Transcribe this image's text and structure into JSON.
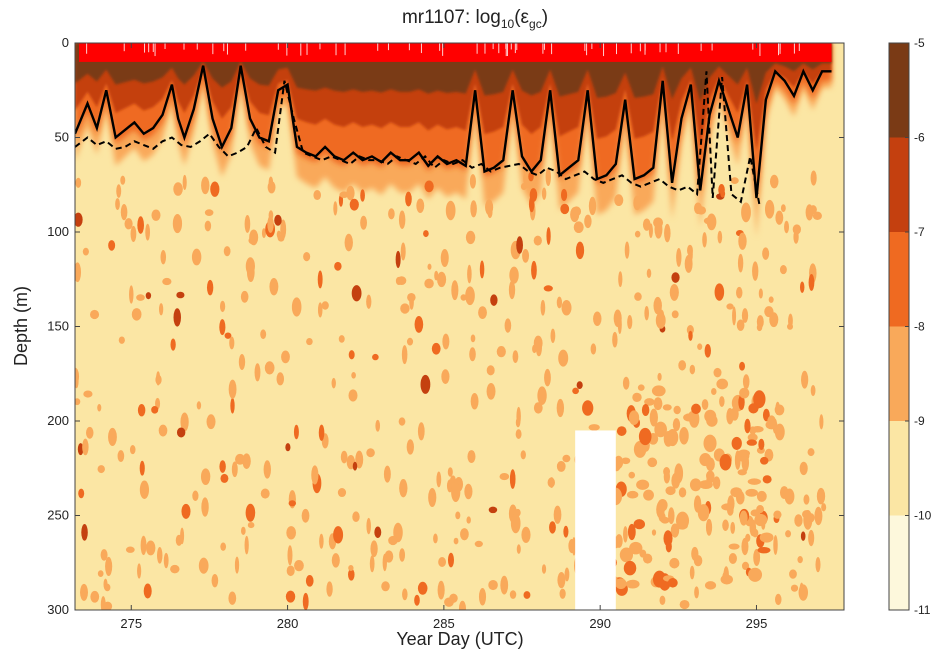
{
  "chart_data": {
    "type": "heatmap",
    "title": "mr1107: log",
    "title_sub": "10",
    "title_paren_open": "(ε",
    "title_sub2": "gc",
    "title_paren_close": ")",
    "xlabel": "Year Day (UTC)",
    "ylabel": "Depth (m)",
    "xlim": [
      273.2,
      297.8
    ],
    "ylim": [
      0,
      300
    ],
    "y_inverted": true,
    "xticks": [
      275,
      280,
      285,
      290,
      295
    ],
    "yticks": [
      0,
      50,
      100,
      150,
      200,
      250,
      300
    ],
    "colorbar": {
      "ticks": [
        -5,
        -6,
        -7,
        -8,
        -9,
        -10,
        -11
      ],
      "levels": [
        {
          "from": -11,
          "to": -10,
          "color": "#fdf8dc"
        },
        {
          "from": -10,
          "to": -9,
          "color": "#fbe6a4"
        },
        {
          "from": -9,
          "to": -8,
          "color": "#f9a95a"
        },
        {
          "from": -8,
          "to": -7,
          "color": "#ef6a21"
        },
        {
          "from": -7,
          "to": -6,
          "color": "#c4400f"
        },
        {
          "from": -6,
          "to": -5,
          "color": "#7a3a15"
        }
      ]
    },
    "background_level_color": "#fbe6a4",
    "mixed_layer_solid": {
      "name": "",
      "x": [
        273.2,
        273.6,
        273.9,
        274.2,
        274.5,
        274.8,
        275.1,
        275.4,
        275.7,
        276.0,
        276.3,
        276.5,
        276.7,
        277.0,
        277.3,
        277.6,
        277.9,
        278.2,
        278.5,
        278.8,
        279.1,
        279.4,
        279.7,
        280.0,
        280.3,
        280.6,
        280.9,
        281.2,
        281.5,
        281.8,
        282.1,
        282.4,
        282.7,
        283.0,
        283.3,
        283.6,
        283.9,
        284.2,
        284.5,
        284.8,
        285.1,
        285.4,
        285.7,
        286.0,
        286.3,
        286.6,
        286.9,
        287.2,
        287.5,
        287.8,
        288.1,
        288.4,
        288.7,
        289.0,
        289.3,
        289.6,
        289.9,
        290.2,
        290.5,
        290.8,
        291.1,
        291.4,
        291.7,
        292.0,
        292.3,
        292.6,
        292.9,
        293.2,
        293.5,
        293.8,
        294.1,
        294.4,
        294.7,
        295.0,
        295.3,
        295.6,
        295.9,
        296.2,
        296.5,
        296.8,
        297.1,
        297.4
      ],
      "y": [
        48,
        32,
        45,
        25,
        50,
        46,
        42,
        48,
        45,
        38,
        22,
        40,
        50,
        35,
        12,
        40,
        55,
        45,
        12,
        40,
        50,
        52,
        25,
        22,
        55,
        58,
        60,
        55,
        60,
        62,
        58,
        62,
        60,
        63,
        58,
        62,
        62,
        58,
        65,
        60,
        64,
        62,
        65,
        25,
        68,
        66,
        62,
        25,
        60,
        68,
        62,
        25,
        70,
        66,
        62,
        25,
        72,
        70,
        64,
        30,
        72,
        70,
        66,
        20,
        74,
        40,
        22,
        78,
        38,
        20,
        35,
        50,
        22,
        82,
        30,
        15,
        20,
        28,
        15,
        25,
        15,
        15
      ]
    },
    "mixed_layer_dashed": {
      "name": "",
      "x": [
        273.2,
        273.6,
        273.9,
        274.2,
        274.5,
        274.8,
        275.1,
        275.4,
        275.7,
        276.0,
        276.3,
        276.6,
        276.9,
        277.2,
        277.5,
        277.8,
        278.1,
        278.4,
        278.7,
        279.0,
        279.3,
        279.6,
        279.9,
        280.2,
        280.5,
        280.8,
        281.1,
        281.4,
        281.7,
        282.0,
        282.3,
        282.6,
        282.9,
        283.2,
        283.5,
        283.8,
        284.1,
        284.4,
        284.7,
        285.0,
        285.3,
        285.6,
        285.9,
        286.2,
        286.5,
        286.8,
        287.1,
        287.4,
        287.7,
        288.0,
        288.3,
        288.6,
        288.9,
        289.2,
        289.5,
        289.8,
        290.1,
        290.4,
        290.7,
        291.0,
        291.3,
        291.6,
        291.9,
        292.2,
        292.5,
        292.8,
        293.1,
        293.4,
        293.6,
        293.9,
        294.2,
        294.5,
        294.8,
        295.1
      ],
      "y": [
        55,
        50,
        54,
        52,
        56,
        55,
        52,
        54,
        56,
        52,
        50,
        54,
        55,
        52,
        48,
        55,
        60,
        58,
        55,
        45,
        55,
        58,
        20,
        40,
        58,
        60,
        62,
        60,
        62,
        64,
        60,
        62,
        62,
        64,
        60,
        62,
        64,
        60,
        66,
        62,
        64,
        62,
        66,
        64,
        68,
        66,
        65,
        64,
        68,
        70,
        66,
        68,
        72,
        70,
        68,
        72,
        74,
        72,
        70,
        74,
        76,
        74,
        72,
        76,
        78,
        76,
        80,
        15,
        82,
        18,
        80,
        84,
        60,
        86
      ]
    },
    "surface_bar_color": "#ff0000",
    "data_gap": {
      "x_from": 289.2,
      "x_to": 290.5,
      "y_from": 205,
      "y_to": 300
    }
  }
}
